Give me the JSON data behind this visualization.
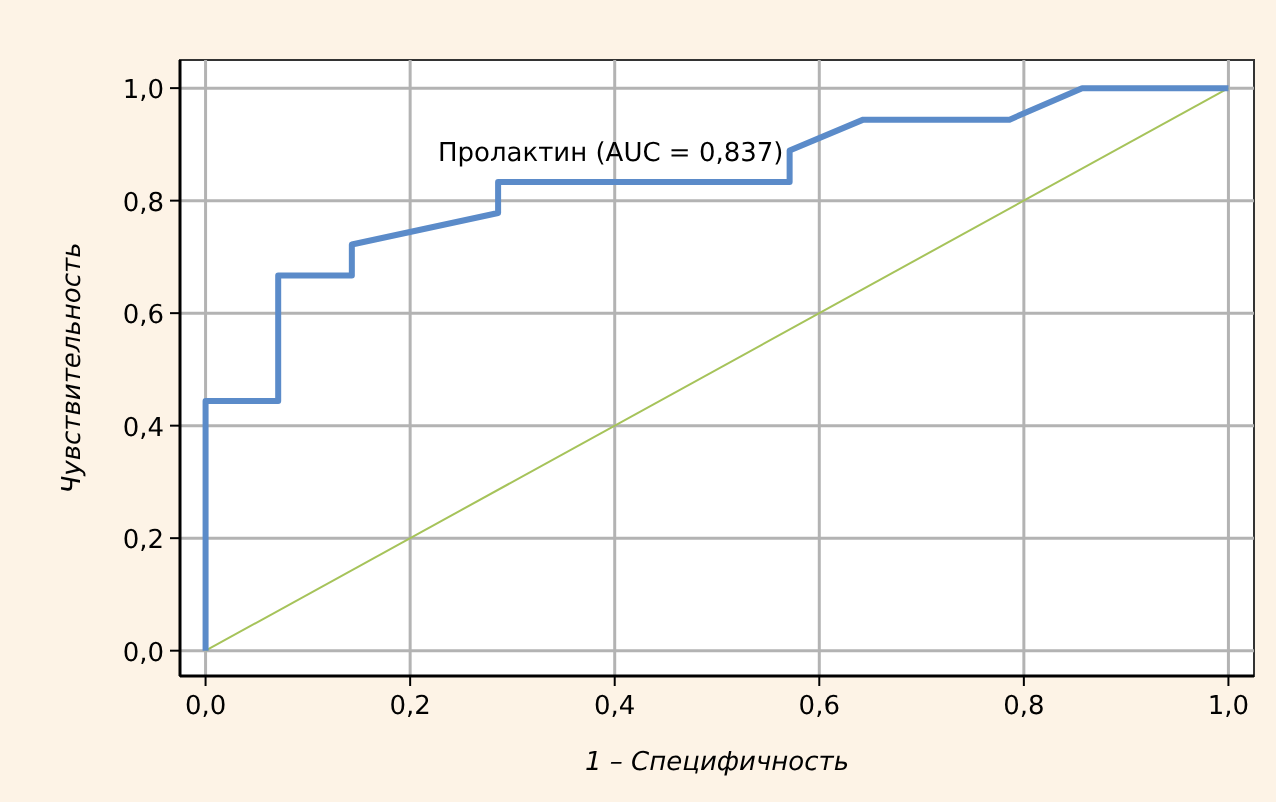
{
  "chart_data": {
    "type": "line",
    "xlabel": "1 – Специфичность",
    "ylabel": "Чувствительность",
    "xlim": [
      -0.025,
      1.025
    ],
    "ylim": [
      -0.045,
      1.05
    ],
    "xticks": [
      {
        "value": 0,
        "label": "0,0"
      },
      {
        "value": 0.2,
        "label": "0,2"
      },
      {
        "value": 0.4,
        "label": "0,4"
      },
      {
        "value": 0.6,
        "label": "0,6"
      },
      {
        "value": 0.8,
        "label": "0,8"
      },
      {
        "value": 1,
        "label": "1,0"
      }
    ],
    "yticks": [
      {
        "value": 0,
        "label": "0,0"
      },
      {
        "value": 0.2,
        "label": "0,2"
      },
      {
        "value": 0.4,
        "label": "0,4"
      },
      {
        "value": 0.6,
        "label": "0,6"
      },
      {
        "value": 0.8,
        "label": "0,8"
      },
      {
        "value": 1,
        "label": "1,0"
      }
    ],
    "grid": true,
    "marker": "none",
    "line_style": "solid",
    "series": [
      {
        "color": "#a6c35a",
        "x": [
          0,
          1
        ],
        "values": [
          0,
          1
        ]
      },
      {
        "color": "#5b8bc9",
        "x": [
          0,
          0,
          0.071,
          0.071,
          0.143,
          0.143,
          0.286,
          0.286,
          0.571,
          0.571,
          0.643,
          0.786,
          0.857,
          1
        ],
        "values": [
          0,
          0.444,
          0.444,
          0.667,
          0.667,
          0.722,
          0.778,
          0.833,
          0.833,
          0.889,
          0.944,
          0.944,
          1,
          1
        ]
      }
    ],
    "annotations": [
      {
        "text": "Пролактин (AUC = 0,837)",
        "x": 0.565,
        "y": 0.87
      }
    ]
  }
}
